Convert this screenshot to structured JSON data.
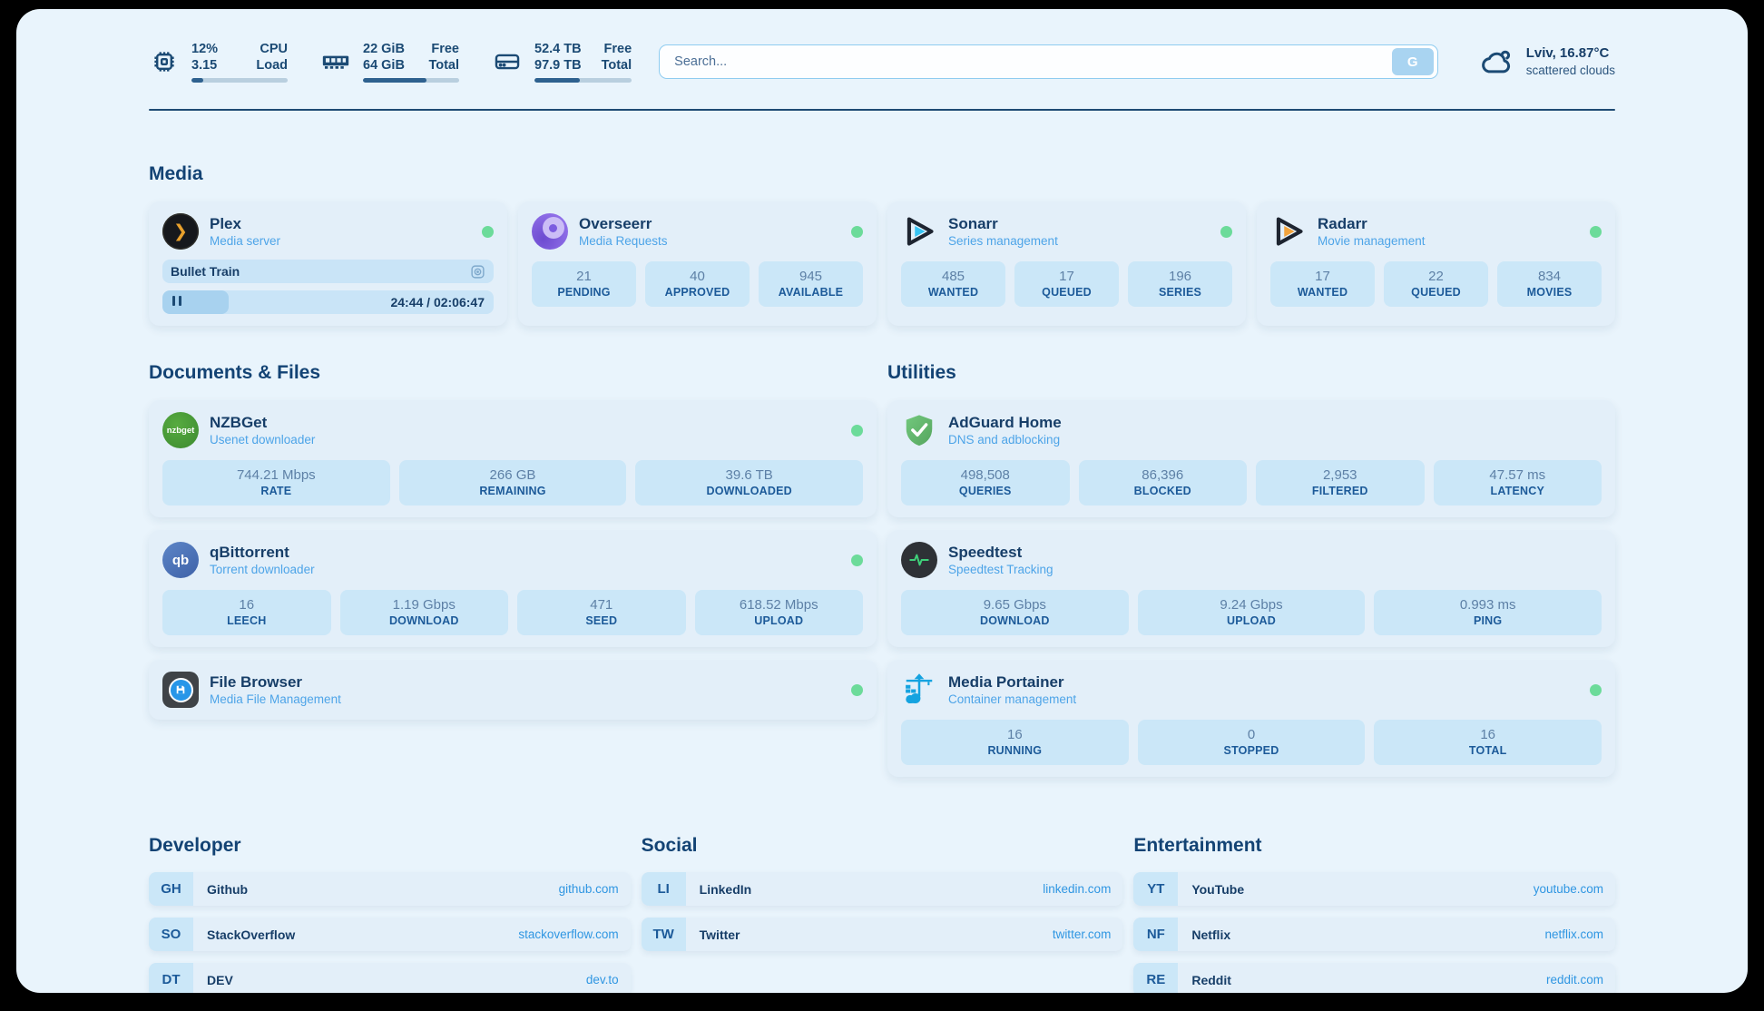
{
  "colors": {
    "accent_blue": "#2f96e2",
    "status_online": "#6cdb9a",
    "navy": "#173e68",
    "panel_background": "#e9f4fc"
  },
  "topbar": {
    "stats": [
      {
        "icon": "cpu-icon",
        "value_top": "12%",
        "value_bottom": "3.15",
        "label_top": "CPU",
        "label_bottom": "Load",
        "progress_percent": 12
      },
      {
        "icon": "ram-icon",
        "value_top": "22 GiB",
        "value_bottom": "64 GiB",
        "label_top": "Free",
        "label_bottom": "Total",
        "progress_percent": 66
      },
      {
        "icon": "disk-icon",
        "value_top": "52.4 TB",
        "value_bottom": "97.9 TB",
        "label_top": "Free",
        "label_bottom": "Total",
        "progress_percent": 47
      }
    ],
    "search": {
      "placeholder": "Search...",
      "engine_button_label": "G"
    },
    "weather": {
      "summary": "Lviv, 16.87°C",
      "condition": "scattered clouds"
    }
  },
  "media": {
    "title": "Media",
    "plex": {
      "name": "Plex",
      "description": "Media server",
      "status": "online",
      "now_playing": "Bullet Train",
      "time_display": "24:44 / 02:06:47",
      "progress_percent": 20
    },
    "overseerr": {
      "name": "Overseerr",
      "description": "Media Requests",
      "status": "online",
      "stats": [
        {
          "value": "21",
          "label": "PENDING"
        },
        {
          "value": "40",
          "label": "APPROVED"
        },
        {
          "value": "945",
          "label": "AVAILABLE"
        }
      ]
    },
    "sonarr": {
      "name": "Sonarr",
      "description": "Series management",
      "status": "online",
      "stats": [
        {
          "value": "485",
          "label": "WANTED"
        },
        {
          "value": "17",
          "label": "QUEUED"
        },
        {
          "value": "196",
          "label": "SERIES"
        }
      ]
    },
    "radarr": {
      "name": "Radarr",
      "description": "Movie management",
      "status": "online",
      "stats": [
        {
          "value": "17",
          "label": "WANTED"
        },
        {
          "value": "22",
          "label": "QUEUED"
        },
        {
          "value": "834",
          "label": "MOVIES"
        }
      ]
    }
  },
  "documents": {
    "title": "Documents & Files",
    "nzbget": {
      "name": "NZBGet",
      "description": "Usenet downloader",
      "status": "online",
      "icon_text": "nzbget",
      "stats": [
        {
          "value": "744.21 Mbps",
          "label": "RATE"
        },
        {
          "value": "266 GB",
          "label": "REMAINING"
        },
        {
          "value": "39.6 TB",
          "label": "DOWNLOADED"
        }
      ]
    },
    "qbittorrent": {
      "name": "qBittorrent",
      "description": "Torrent downloader",
      "status": "online",
      "icon_text": "qb",
      "stats": [
        {
          "value": "16",
          "label": "LEECH"
        },
        {
          "value": "1.19 Gbps",
          "label": "DOWNLOAD"
        },
        {
          "value": "471",
          "label": "SEED"
        },
        {
          "value": "618.52 Mbps",
          "label": "UPLOAD"
        }
      ]
    },
    "filebrowser": {
      "name": "File Browser",
      "description": "Media File Management",
      "status": "online"
    }
  },
  "utilities": {
    "title": "Utilities",
    "adguard": {
      "name": "AdGuard Home",
      "description": "DNS and adblocking",
      "stats": [
        {
          "value": "498,508",
          "label": "QUERIES"
        },
        {
          "value": "86,396",
          "label": "BLOCKED"
        },
        {
          "value": "2,953",
          "label": "FILTERED"
        },
        {
          "value": "47.57 ms",
          "label": "LATENCY"
        }
      ]
    },
    "speedtest": {
      "name": "Speedtest",
      "description": "Speedtest Tracking",
      "stats": [
        {
          "value": "9.65 Gbps",
          "label": "DOWNLOAD"
        },
        {
          "value": "9.24 Gbps",
          "label": "UPLOAD"
        },
        {
          "value": "0.993 ms",
          "label": "PING"
        }
      ]
    },
    "portainer": {
      "name": "Media Portainer",
      "description": "Container management",
      "status": "online",
      "stats": [
        {
          "value": "16",
          "label": "RUNNING"
        },
        {
          "value": "0",
          "label": "STOPPED"
        },
        {
          "value": "16",
          "label": "TOTAL"
        }
      ]
    }
  },
  "bookmarks": {
    "developer": {
      "title": "Developer",
      "links": [
        {
          "abbr": "GH",
          "name": "Github",
          "url": "github.com"
        },
        {
          "abbr": "SO",
          "name": "StackOverflow",
          "url": "stackoverflow.com"
        },
        {
          "abbr": "DT",
          "name": "DEV",
          "url": "dev.to"
        }
      ]
    },
    "social": {
      "title": "Social",
      "links": [
        {
          "abbr": "LI",
          "name": "LinkedIn",
          "url": "linkedin.com"
        },
        {
          "abbr": "TW",
          "name": "Twitter",
          "url": "twitter.com"
        }
      ]
    },
    "entertainment": {
      "title": "Entertainment",
      "links": [
        {
          "abbr": "YT",
          "name": "YouTube",
          "url": "youtube.com"
        },
        {
          "abbr": "NF",
          "name": "Netflix",
          "url": "netflix.com"
        },
        {
          "abbr": "RE",
          "name": "Reddit",
          "url": "reddit.com"
        }
      ]
    }
  }
}
